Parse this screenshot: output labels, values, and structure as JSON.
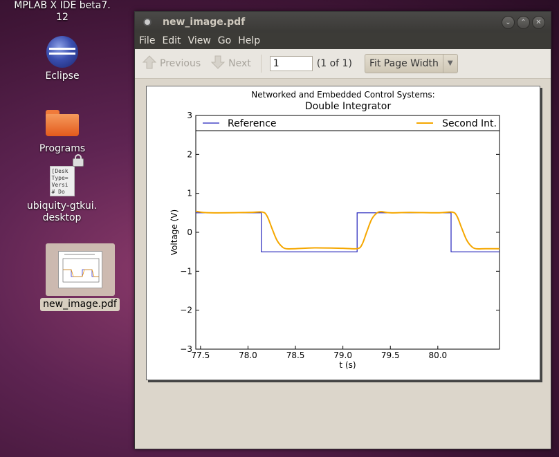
{
  "desktop": {
    "mplab": "MPLAB X IDE beta7.\n12",
    "eclipse": "Eclipse",
    "programs": "Programs",
    "ubiquity": "ubiquity-gtkui.\ndesktop",
    "ubiquity_doc_text": "[Desk\nType=\nVersi\n# Do",
    "pdf_file": "new_image.pdf"
  },
  "window": {
    "title": "new_image.pdf",
    "menu": [
      "File",
      "Edit",
      "View",
      "Go",
      "Help"
    ],
    "toolbar": {
      "previous": "Previous",
      "next": "Next",
      "page_value": "1",
      "page_count": "(1 of 1)",
      "zoom": "Fit Page Width"
    }
  },
  "colors": {
    "reference": "#2222bb",
    "second": "#f5a700"
  },
  "chart_data": {
    "type": "line",
    "title": "Networked and Embedded Control Systems:",
    "subtitle": "Double Integrator",
    "xlabel": "t (s)",
    "ylabel": "Voltage (V)",
    "xlim": [
      77.45,
      80.65
    ],
    "ylim": [
      -3,
      3
    ],
    "xticks": [
      77.5,
      78.0,
      78.5,
      79.0,
      79.5,
      80.0
    ],
    "xtick_labels": [
      "77.5",
      "78.0",
      "78.5",
      "79.0",
      "79.5",
      "80.0"
    ],
    "yticks": [
      -3,
      -2,
      -1,
      0,
      1,
      2,
      3
    ],
    "ytick_labels": [
      "−3",
      "−2",
      "−1",
      "0",
      "1",
      "2",
      "3"
    ],
    "legend": "top",
    "grid": false,
    "series": [
      {
        "name": "Reference",
        "x": [
          77.45,
          78.14,
          78.14,
          79.15,
          79.15,
          80.14,
          80.14,
          80.65
        ],
        "y": [
          0.5,
          0.5,
          -0.5,
          -0.5,
          0.5,
          0.5,
          -0.5,
          -0.5
        ]
      },
      {
        "name": "Second Int.",
        "x": [
          77.45,
          77.6,
          78.0,
          78.15,
          78.2,
          78.25,
          78.3,
          78.35,
          78.4,
          78.5,
          78.7,
          79.0,
          79.15,
          79.2,
          79.25,
          79.3,
          79.35,
          79.4,
          79.5,
          79.7,
          80.0,
          80.15,
          80.2,
          80.25,
          80.3,
          80.35,
          80.4,
          80.5,
          80.65
        ],
        "y": [
          0.54,
          0.5,
          0.51,
          0.52,
          0.42,
          0.12,
          -0.18,
          -0.35,
          -0.42,
          -0.42,
          -0.4,
          -0.41,
          -0.42,
          -0.32,
          0.0,
          0.32,
          0.48,
          0.53,
          0.5,
          0.51,
          0.5,
          0.52,
          0.42,
          0.12,
          -0.18,
          -0.35,
          -0.42,
          -0.42,
          -0.42
        ]
      }
    ]
  }
}
